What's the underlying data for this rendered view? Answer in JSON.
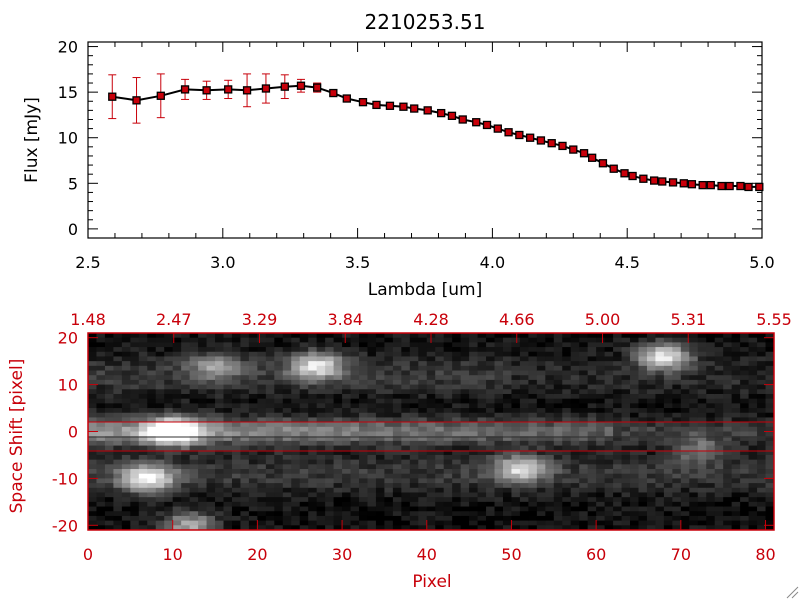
{
  "chart_data": [
    {
      "type": "line",
      "title": "2210253.51",
      "xlabel": "Lambda [um]",
      "ylabel": "Flux [mJy]",
      "xlim": [
        2.5,
        5.0
      ],
      "ylim": [
        -1,
        20.5
      ],
      "xticks": [
        "2.5",
        "3.0",
        "3.5",
        "4.0",
        "4.5",
        "5.0"
      ],
      "yticks": [
        "0",
        "5",
        "10",
        "15",
        "20"
      ],
      "grid": false,
      "line_color": "#000000",
      "marker_color": "#c8000a",
      "errorbar_color": "#c8000a",
      "x": [
        2.59,
        2.68,
        2.77,
        2.86,
        2.94,
        3.02,
        3.09,
        3.16,
        3.23,
        3.29,
        3.35,
        3.41,
        3.46,
        3.52,
        3.57,
        3.62,
        3.67,
        3.71,
        3.76,
        3.81,
        3.85,
        3.89,
        3.94,
        3.98,
        4.02,
        4.06,
        4.1,
        4.14,
        4.18,
        4.22,
        4.26,
        4.3,
        4.34,
        4.37,
        4.41,
        4.45,
        4.49,
        4.52,
        4.56,
        4.6,
        4.63,
        4.67,
        4.71,
        4.74,
        4.78,
        4.81,
        4.85,
        4.88,
        4.92,
        4.95,
        4.99
      ],
      "y": [
        14.5,
        14.1,
        14.6,
        15.3,
        15.2,
        15.3,
        15.2,
        15.4,
        15.6,
        15.7,
        15.5,
        14.9,
        14.3,
        13.9,
        13.6,
        13.5,
        13.4,
        13.2,
        13.0,
        12.7,
        12.4,
        12.0,
        11.7,
        11.4,
        11.0,
        10.6,
        10.3,
        10.0,
        9.7,
        9.4,
        9.1,
        8.7,
        8.3,
        7.8,
        7.2,
        6.6,
        6.1,
        5.8,
        5.5,
        5.3,
        5.2,
        5.1,
        5.0,
        4.9,
        4.8,
        4.8,
        4.7,
        4.7,
        4.7,
        4.6,
        4.6
      ],
      "yerr": [
        2.4,
        2.5,
        2.4,
        1.1,
        1.0,
        1.0,
        1.8,
        1.6,
        1.3,
        0.7,
        0.5,
        0.3,
        0.3,
        0.3,
        0.2,
        0.2,
        0.2,
        0.2,
        0.2,
        0.2,
        0.2,
        0.2,
        0.2,
        0.2,
        0.2,
        0.2,
        0.2,
        0.2,
        0.2,
        0.2,
        0.2,
        0.2,
        0.2,
        0.2,
        0.2,
        0.2,
        0.2,
        0.2,
        0.2,
        0.2,
        0.2,
        0.2,
        0.2,
        0.2,
        0.2,
        0.2,
        0.2,
        0.2,
        0.2,
        0.2,
        0.2
      ]
    },
    {
      "type": "heatmap",
      "xlabel": "Pixel",
      "ylabel": "Space Shift [pixel]",
      "xlim": [
        0,
        81
      ],
      "ylim": [
        -21,
        21
      ],
      "xticks": [
        "0",
        "10",
        "20",
        "30",
        "40",
        "50",
        "60",
        "70",
        "80"
      ],
      "yticks": [
        "-20",
        "-10",
        "0",
        "10",
        "20"
      ],
      "top_xticks": [
        "1.48",
        "2.47",
        "3.29",
        "3.84",
        "4.28",
        "4.66",
        "5.00",
        "5.31",
        "5.55"
      ],
      "colormap": "grayscale",
      "axis_color": "#c8000a",
      "extraction_lines_y": [
        3,
        -3
      ],
      "trace_center_y": 0,
      "sources": [
        {
          "x": 10,
          "y": 0,
          "peak": 1.0
        },
        {
          "x": 7,
          "y": -10,
          "peak": 0.85
        },
        {
          "x": 27,
          "y": 14,
          "peak": 0.75
        },
        {
          "x": 15,
          "y": 14,
          "peak": 0.45
        },
        {
          "x": 51,
          "y": -8,
          "peak": 0.7
        },
        {
          "x": 68,
          "y": 16,
          "peak": 0.8
        },
        {
          "x": 12,
          "y": -20,
          "peak": 0.6
        },
        {
          "x": 72,
          "y": -4,
          "peak": 0.35
        }
      ]
    }
  ]
}
